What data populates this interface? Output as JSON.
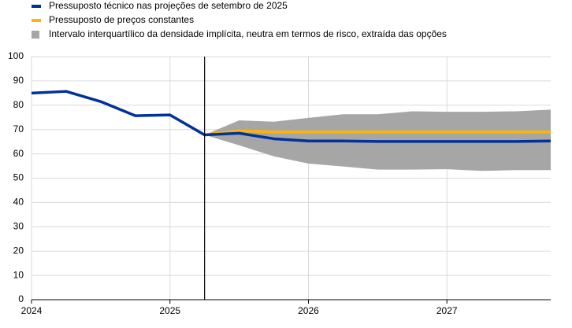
{
  "chart_data": {
    "type": "line",
    "x": [
      2024,
      2024.25,
      2024.5,
      2024.75,
      2025,
      2025.25,
      2025.5,
      2025.75,
      2026,
      2026.25,
      2026.5,
      2026.75,
      2027,
      2027.25,
      2027.5,
      2027.75
    ],
    "series": [
      {
        "name": "Intervalo interquartílico da densidade implícita, neutra em termos de risco, extraída das opções",
        "color": "#a6a6a6",
        "kind": "band",
        "upper": [
          null,
          null,
          null,
          null,
          null,
          67.8,
          73.8,
          73.2,
          74.8,
          76.3,
          76.3,
          77.5,
          77.3,
          77.3,
          77.5,
          78.2
        ],
        "lower": [
          null,
          null,
          null,
          null,
          null,
          67.8,
          63.5,
          59,
          56,
          54.8,
          53.5,
          53.5,
          53.7,
          53,
          53.3,
          53.3
        ]
      },
      {
        "name": "Pressuposto de preços constantes",
        "color": "#ffb400",
        "kind": "line",
        "values": [
          null,
          null,
          null,
          null,
          null,
          67.8,
          69.5,
          69,
          69,
          69,
          69,
          69,
          69,
          69,
          69,
          69
        ]
      },
      {
        "name": "Pressuposto técnico nas projeções de setembro de 2025",
        "color": "#003299",
        "kind": "line",
        "values": [
          85,
          85.7,
          81.5,
          75.7,
          76,
          67.8,
          68.5,
          66.2,
          65.3,
          65.3,
          65.1,
          65.1,
          65.1,
          65.1,
          65.1,
          65.3
        ]
      }
    ],
    "legend_order": [
      2,
      1,
      0
    ],
    "vline": 2025.25,
    "xlim": [
      2024,
      2027.75
    ],
    "xticks": [
      2024,
      2025,
      2026,
      2027
    ],
    "ylim": [
      0,
      100
    ],
    "yticks": [
      0,
      10,
      20,
      30,
      40,
      50,
      60,
      70,
      80,
      90,
      100
    ],
    "grid": true
  }
}
